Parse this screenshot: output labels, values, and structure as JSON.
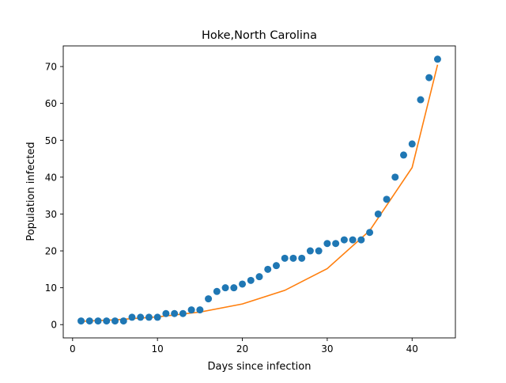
{
  "chart_data": {
    "type": "scatter",
    "title": "Hoke,North Carolina",
    "xlabel": "Days since infection",
    "ylabel": "Population infected",
    "xlim": [
      -1.1,
      45.1
    ],
    "ylim": [
      -3.6,
      75.6
    ],
    "xticks": [
      0,
      10,
      20,
      30,
      40
    ],
    "yticks": [
      0,
      10,
      20,
      30,
      40,
      50,
      60,
      70
    ],
    "grid": false,
    "series": [
      {
        "kind": "points",
        "color": "#1f77b4",
        "x": [
          1,
          2,
          3,
          4,
          5,
          6,
          7,
          8,
          9,
          10,
          11,
          12,
          13,
          14,
          15,
          16,
          17,
          18,
          19,
          20,
          21,
          22,
          23,
          24,
          25,
          26,
          27,
          28,
          29,
          30,
          31,
          32,
          33,
          34,
          35,
          36,
          37,
          38,
          39,
          40,
          41,
          42,
          43
        ],
        "y": [
          1,
          1,
          1,
          1,
          1,
          1,
          2,
          2,
          2,
          2,
          3,
          3,
          3,
          4,
          4,
          7,
          9,
          10,
          10,
          11,
          12,
          13,
          15,
          16,
          18,
          18,
          18,
          20,
          20,
          22,
          22,
          23,
          23,
          23,
          25,
          30,
          34,
          40,
          46,
          49,
          61,
          67,
          72
        ]
      },
      {
        "kind": "fit-curve",
        "color": "#ff7f0e",
        "x": [
          1,
          5,
          10,
          15,
          20,
          25,
          30,
          35,
          40,
          43
        ],
        "y": [
          0.9,
          1.3,
          2.1,
          3.4,
          5.6,
          9.3,
          15.2,
          25.5,
          42.6,
          70.5
        ]
      }
    ]
  }
}
